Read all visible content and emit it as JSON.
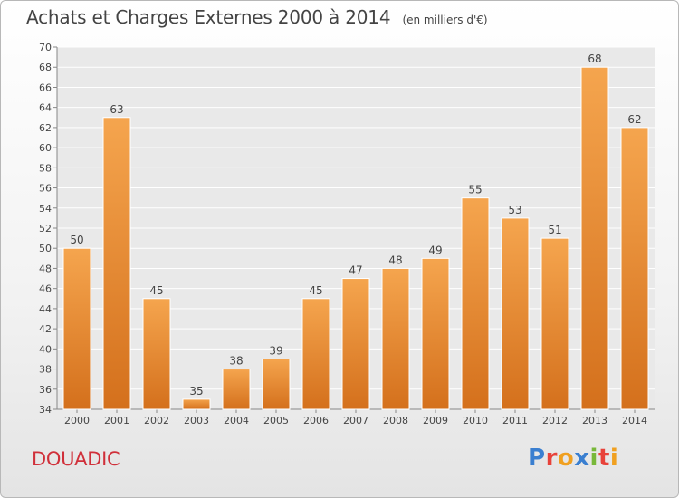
{
  "header": {
    "title": "Achats et Charges Externes 2000 à 2014",
    "subtitle": "(en milliers d'€)"
  },
  "footer": {
    "commune": "DOUADIC",
    "brand": {
      "text": "Proxiti",
      "letters": [
        {
          "char": "P",
          "color": "#3a7fd0"
        },
        {
          "char": "r",
          "color": "#e8423a"
        },
        {
          "char": "o",
          "color": "#f0a020"
        },
        {
          "char": "x",
          "color": "#3a7fd0"
        },
        {
          "char": "i",
          "color": "#78b83a"
        },
        {
          "char": "t",
          "color": "#e8423a"
        },
        {
          "char": "i",
          "color": "#f0a020"
        }
      ]
    }
  },
  "chart_data": {
    "type": "bar",
    "title": "Achats et Charges Externes 2000 à 2014",
    "subtitle": "(en milliers d'€)",
    "categories": [
      "2000",
      "2001",
      "2002",
      "2003",
      "2004",
      "2005",
      "2006",
      "2007",
      "2008",
      "2009",
      "2010",
      "2011",
      "2012",
      "2013",
      "2014"
    ],
    "values": [
      50,
      63,
      45,
      35,
      38,
      39,
      45,
      47,
      48,
      49,
      55,
      53,
      51,
      68,
      62
    ],
    "ylim": [
      34,
      70
    ],
    "yticks": [
      34,
      36,
      38,
      40,
      42,
      44,
      46,
      48,
      50,
      52,
      54,
      56,
      58,
      60,
      62,
      64,
      66,
      68,
      70
    ],
    "grid": true,
    "bar_color_top": "#f5a54e",
    "bar_color_bottom": "#d4701c",
    "grid_color": "#ffffff",
    "legend": "none"
  }
}
